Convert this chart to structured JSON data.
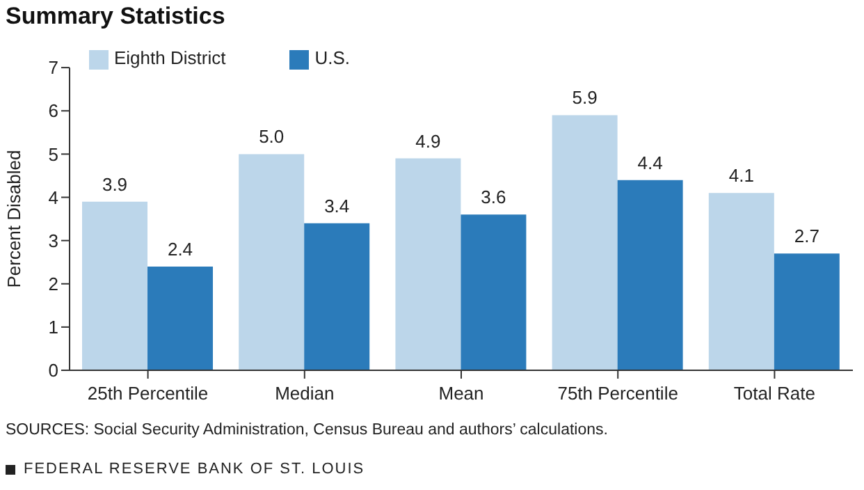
{
  "chart_data": {
    "type": "bar",
    "title": "Summary Statistics",
    "ylabel": "Percent Disabled",
    "categories": [
      "25th Percentile",
      "Median",
      "Mean",
      "75th Percentile",
      "Total Rate"
    ],
    "series": [
      {
        "name": "Eighth District",
        "color": "#bcd6ea",
        "values": [
          3.9,
          5.0,
          4.9,
          5.9,
          4.1
        ],
        "value_labels": [
          "3.9",
          "5.0",
          "4.9",
          "5.9",
          "4.1"
        ]
      },
      {
        "name": "U.S.",
        "color": "#2b7bba",
        "values": [
          2.4,
          3.4,
          3.6,
          4.4,
          2.7
        ],
        "value_labels": [
          "2.4",
          "3.4",
          "3.6",
          "4.4",
          "2.7"
        ]
      }
    ],
    "ylim": [
      0,
      7
    ],
    "yticks": [
      0,
      1,
      2,
      3,
      4,
      5,
      6,
      7
    ],
    "legend": "top left",
    "annotations": [
      "SOURCES: Social Security Administration, Census Bureau and authors’ calculations.",
      "FEDERAL RESERVE BANK OF ST. LOUIS"
    ]
  }
}
